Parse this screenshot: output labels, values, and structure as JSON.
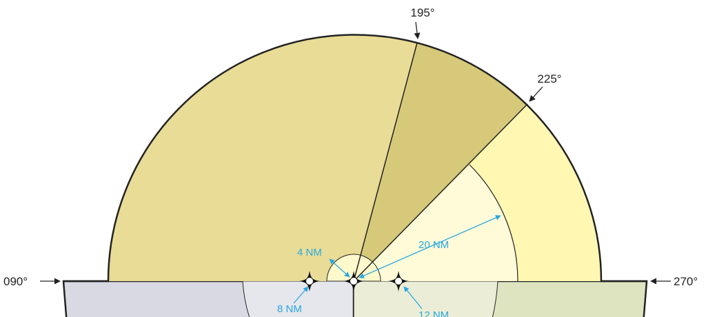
{
  "labels": {
    "bearing_195": "195°",
    "bearing_225": "225°",
    "bearing_090": "090°",
    "bearing_270": "270°",
    "radius_4nm": "4 NM",
    "radius_8nm": "8 NM",
    "radius_12nm": "12 NM",
    "radius_20nm": "20 NM"
  },
  "colors": {
    "sector_090_195": "#e8dc96",
    "sector_195_225": "#d6c979",
    "sector_225_270_outer": "#fff7b2",
    "sector_225_270_inner": "#fffad8",
    "inner_4nm_circle": "#fff9cc",
    "left_base_outer": "#d8d9e3",
    "left_base_inner": "#e6e6ed",
    "right_base_outer": "#dde4bf",
    "right_base_inner": "#ebedd6",
    "outline": "#222222",
    "annotation": "#29a8e0"
  },
  "icons": [
    "vor-marker-icon",
    "arrow-icon"
  ]
}
